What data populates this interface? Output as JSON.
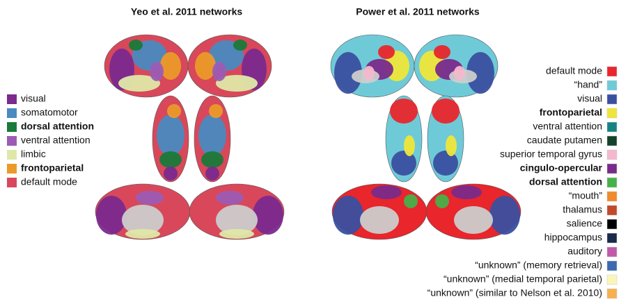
{
  "panels": [
    {
      "title": "Yeo et al. 2011 networks",
      "legend": [
        {
          "label": "visual",
          "color": "#7b2a8e",
          "bold": false
        },
        {
          "label": "somatomotor",
          "color": "#4a8ac0",
          "bold": false
        },
        {
          "label": "dorsal attention",
          "color": "#1a7a3a",
          "bold": true
        },
        {
          "label": "ventral attention",
          "color": "#9c5cb4",
          "bold": false
        },
        {
          "label": "limbic",
          "color": "#dfe8a8",
          "bold": false
        },
        {
          "label": "frontoparietal",
          "color": "#eb9a2a",
          "bold": true
        },
        {
          "label": "default mode",
          "color": "#d8485a",
          "bold": false
        }
      ]
    },
    {
      "title": "Power et al. 2011 networks",
      "legend": [
        {
          "label": "default mode",
          "color": "#e8262c",
          "bold": false
        },
        {
          "label": "“hand”",
          "color": "#6fcad8",
          "bold": false
        },
        {
          "label": "visual",
          "color": "#3a4fa0",
          "bold": false
        },
        {
          "label": "frontoparietal",
          "color": "#eee63a",
          "bold": true
        },
        {
          "label": "ventral attention",
          "color": "#168383",
          "bold": false
        },
        {
          "label": "caudate putamen",
          "color": "#14422a",
          "bold": false
        },
        {
          "label": "superior temporal gyrus",
          "color": "#f4b8cc",
          "bold": false
        },
        {
          "label": "cingulo-opercular",
          "color": "#7a2a8a",
          "bold": true
        },
        {
          "label": "dorsal attention",
          "color": "#48b048",
          "bold": true
        },
        {
          "label": "“mouth”",
          "color": "#f08a2a",
          "bold": false
        },
        {
          "label": "thalamus",
          "color": "#c24a2a",
          "bold": false
        },
        {
          "label": "salience",
          "color": "#000000",
          "bold": false
        },
        {
          "label": "hippocampus",
          "color": "#1a2a4a",
          "bold": false
        },
        {
          "label": "auditory",
          "color": "#c05aa8",
          "bold": false
        },
        {
          "label": "“unknown” (memory retrieval)",
          "color": "#3a6ab0",
          "bold": false
        },
        {
          "label": "“unknown” (medial temporal parietal)",
          "color": "#fbf5b8",
          "bold": false
        },
        {
          "label": "“unknown” (similar to Nelson et al. 2010)",
          "color": "#f6b050",
          "bold": false
        }
      ]
    }
  ]
}
